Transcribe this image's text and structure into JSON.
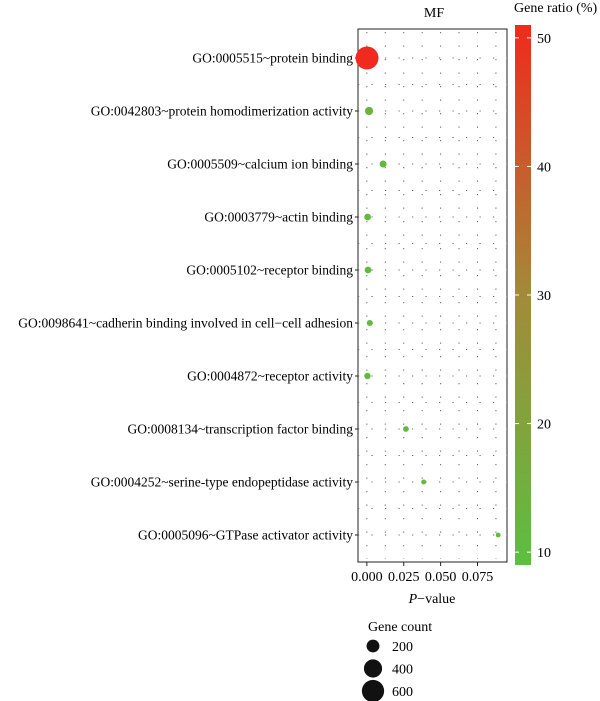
{
  "chart_data": {
    "type": "scatter",
    "facet_label": "MF",
    "categories": [
      "GO:0005515~protein binding",
      "GO:0042803~protein homodimerization activity",
      "GO:0005509~calcium ion binding",
      "GO:0003779~actin binding",
      "GO:0005102~receptor binding",
      "GO:0098641~cadherin binding involved in cell−cell adhesion",
      "GO:0004872~receptor activity",
      "GO:0008134~transcription factor binding",
      "GO:0004252~serine-type endopeptidase activity",
      "GO:0005096~GTPase activator activity"
    ],
    "points": [
      {
        "term_index": 0,
        "p_value": 0.0001,
        "gene_count": 640,
        "gene_ratio": 51
      },
      {
        "term_index": 1,
        "p_value": 0.0015,
        "gene_count": 80,
        "gene_ratio": 12
      },
      {
        "term_index": 2,
        "p_value": 0.011,
        "gene_count": 60,
        "gene_ratio": 11
      },
      {
        "term_index": 3,
        "p_value": 0.0005,
        "gene_count": 55,
        "gene_ratio": 11
      },
      {
        "term_index": 4,
        "p_value": 0.0008,
        "gene_count": 55,
        "gene_ratio": 11
      },
      {
        "term_index": 5,
        "p_value": 0.002,
        "gene_count": 45,
        "gene_ratio": 10
      },
      {
        "term_index": 6,
        "p_value": 0.0004,
        "gene_count": 50,
        "gene_ratio": 10
      },
      {
        "term_index": 7,
        "p_value": 0.0265,
        "gene_count": 40,
        "gene_ratio": 10
      },
      {
        "term_index": 8,
        "p_value": 0.0385,
        "gene_count": 30,
        "gene_ratio": 10
      },
      {
        "term_index": 9,
        "p_value": 0.089,
        "gene_count": 28,
        "gene_ratio": 10
      }
    ],
    "x_axis": {
      "label_italic": "P",
      "label_rest": "−value",
      "range": [
        -0.006,
        0.095
      ],
      "ticks": [
        0.0,
        0.025,
        0.05,
        0.075
      ],
      "tick_labels": [
        "0.000",
        "0.025",
        "0.050",
        "0.075"
      ]
    },
    "color_legend": {
      "title": "Gene ratio (%)",
      "range": [
        9,
        51
      ],
      "ticks": [
        10,
        20,
        30,
        40,
        50
      ],
      "tick_labels": [
        "10",
        "20",
        "30",
        "40",
        "50"
      ],
      "low_color": "#5cbf40",
      "high_color": "#f02a1e"
    },
    "size_legend": {
      "title": "Gene count",
      "values": [
        200,
        400,
        600
      ],
      "labels": [
        "200",
        "400",
        "600"
      ]
    },
    "grid": "dotted"
  }
}
